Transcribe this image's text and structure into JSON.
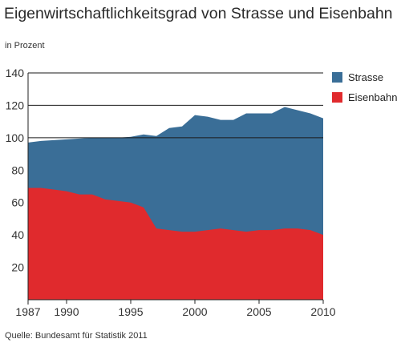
{
  "title": "Eigenwirtschaftlichkeitsgrad von Strasse und Eisenbahn",
  "subtitle": "in Prozent",
  "source": "Quelle: Bundesamt für Statistik 2011",
  "colors": {
    "strasse": "#3a6e97",
    "eisenbahn": "#e02a2d",
    "grid": "#1a1a1a"
  },
  "chart_data": {
    "type": "area",
    "x": [
      1987,
      1988,
      1989,
      1990,
      1991,
      1992,
      1993,
      1994,
      1995,
      1996,
      1997,
      1998,
      1999,
      2000,
      2001,
      2002,
      2003,
      2004,
      2005,
      2006,
      2007,
      2008,
      2009,
      2010
    ],
    "series": [
      {
        "name": "Strasse",
        "color": "#3a6e97",
        "values": [
          97,
          98,
          98.5,
          99,
          99.5,
          100,
          100,
          100,
          100.5,
          102,
          101,
          106,
          107,
          114,
          113,
          111,
          111,
          115,
          115,
          115,
          119,
          117,
          115,
          112
        ]
      },
      {
        "name": "Eisenbahn",
        "color": "#e02a2d",
        "values": [
          69,
          69,
          68,
          67,
          65,
          65,
          62,
          61,
          60,
          57,
          44,
          43,
          42,
          42,
          43,
          44,
          43,
          42,
          43,
          43,
          44,
          44,
          43,
          40
        ]
      }
    ],
    "ylim": [
      0,
      140
    ],
    "xlim": [
      1987,
      2010
    ],
    "yticks": [
      20,
      40,
      60,
      80,
      100,
      120,
      140
    ],
    "xticks": [
      1987,
      1990,
      1995,
      2000,
      2005,
      2010
    ],
    "gridlines_y": [
      100,
      120,
      140
    ],
    "legend": {
      "position": "right",
      "entries": [
        "Strasse",
        "Eisenbahn"
      ]
    }
  }
}
